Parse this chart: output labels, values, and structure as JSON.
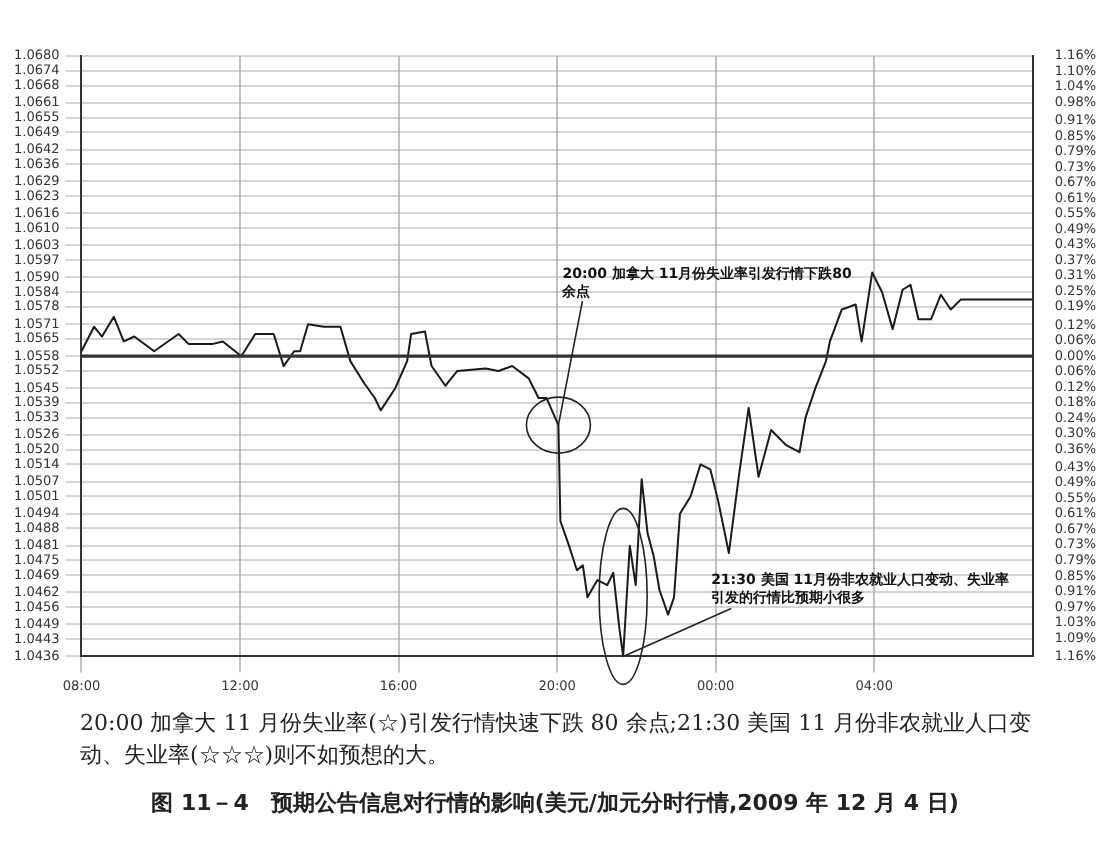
{
  "chart_data": {
    "type": "line",
    "title": "图 11－4　预期公告信息对行情的影响(美元/加元分时行情,2009 年 12 月 4 日)",
    "annotations": [
      "20:00 加拿大 11 月份失业率(☆)引发行情快速下跌 80 余点;21:30 美国 11 月份非农就业人口变动、失业率(☆☆☆)则不如预想的大。",
      {
        "text": "20:00 加拿大 11月份失业率引发行情下跌80余点",
        "x": "2009-12-04T20:02",
        "y": 1.053
      },
      {
        "text": "21:30 美国 11月份非农就业人口变动、失业率引发的行情比预期小很多",
        "x": "2009-12-04T21:40",
        "y": 1.0436
      }
    ],
    "series": [
      {
        "color": "#1a1a1a",
        "x": [
          "2009-12-04T08:00",
          "2009-12-04T08:19",
          "2009-12-04T08:31",
          "2009-12-04T08:49",
          "2009-12-04T09:04",
          "2009-12-04T09:20",
          "2009-12-04T09:50",
          "2009-12-04T10:27",
          "2009-12-04T10:42",
          "2009-12-04T11:19",
          "2009-12-04T11:34",
          "2009-12-04T12:02",
          "2009-12-04T12:23",
          "2009-12-04T12:51",
          "2009-12-04T13:06",
          "2009-12-04T13:22",
          "2009-12-04T13:31",
          "2009-12-04T13:43",
          "2009-12-04T14:07",
          "2009-12-04T14:32",
          "2009-12-04T14:47",
          "2009-12-04T15:08",
          "2009-12-04T15:24",
          "2009-12-04T15:33",
          "2009-12-04T15:55",
          "2009-12-04T16:13",
          "2009-12-04T16:19",
          "2009-12-04T16:40",
          "2009-12-04T16:50",
          "2009-12-04T17:11",
          "2009-12-04T17:29",
          "2009-12-04T18:12",
          "2009-12-04T18:31",
          "2009-12-04T18:52",
          "2009-12-04T19:17",
          "2009-12-04T19:32",
          "2009-12-04T19:44",
          "2009-12-04T20:02",
          "2009-12-04T20:05",
          "2009-12-04T20:18",
          "2009-12-04T20:30",
          "2009-12-04T20:39",
          "2009-12-04T20:46",
          "2009-12-04T21:01",
          "2009-12-04T21:16",
          "2009-12-04T21:25",
          "2009-12-04T21:34",
          "2009-12-04T21:40",
          "2009-12-04T21:50",
          "2009-12-04T21:59",
          "2009-12-04T22:08",
          "2009-12-04T22:17",
          "2009-12-04T22:26",
          "2009-12-04T22:35",
          "2009-12-04T22:48",
          "2009-12-04T22:57",
          "2009-12-04T23:06",
          "2009-12-04T23:22",
          "2009-12-04T23:37",
          "2009-12-04T23:52",
          "2009-12-05T00:04",
          "2009-12-05T00:20",
          "2009-12-05T00:35",
          "2009-12-05T00:50",
          "2009-12-05T01:05",
          "2009-12-05T01:24",
          "2009-12-05T01:46",
          "2009-12-05T02:07",
          "2009-12-05T02:16",
          "2009-12-05T02:31",
          "2009-12-05T02:47",
          "2009-12-05T02:53",
          "2009-12-05T03:11",
          "2009-12-05T03:32",
          "2009-12-05T03:41",
          "2009-12-05T03:57",
          "2009-12-05T04:12",
          "2009-12-05T04:28",
          "2009-12-05T04:43",
          "2009-12-05T04:55",
          "2009-12-05T05:07",
          "2009-12-05T05:26",
          "2009-12-05T05:41",
          "2009-12-05T05:56",
          "2009-12-05T06:11",
          "2009-12-05T06:27",
          "2009-12-05T08:00"
        ],
        "values": [
          1.056,
          1.057,
          1.0566,
          1.0574,
          1.0564,
          1.0566,
          1.056,
          1.0567,
          1.0563,
          1.0563,
          1.0564,
          1.0558,
          1.0567,
          1.0567,
          1.0554,
          1.056,
          1.056,
          1.0571,
          1.057,
          1.057,
          1.0556,
          1.0547,
          1.0541,
          1.0536,
          1.0545,
          1.0556,
          1.0567,
          1.0568,
          1.0554,
          1.0546,
          1.0552,
          1.0553,
          1.0552,
          1.0554,
          1.0549,
          1.0541,
          1.0541,
          1.053,
          1.0491,
          1.0481,
          1.0471,
          1.0473,
          1.046,
          1.0467,
          1.0465,
          1.047,
          1.0448,
          1.0436,
          1.0481,
          1.0465,
          1.0508,
          1.0486,
          1.0477,
          1.0463,
          1.0453,
          1.046,
          1.0494,
          1.0501,
          1.0514,
          1.0512,
          1.0499,
          1.0478,
          1.0509,
          1.0537,
          1.0509,
          1.0528,
          1.0522,
          1.0519,
          1.0533,
          1.0545,
          1.0556,
          1.0564,
          1.0577,
          1.0579,
          1.0564,
          1.0592,
          1.0584,
          1.0569,
          1.0585,
          1.0587,
          1.0573,
          1.0573,
          1.0583,
          1.0577,
          1.0581,
          1.0581,
          1.0581
        ]
      }
    ],
    "xlim": [
      "2009-12-04T08:00",
      "2009-12-05T08:00"
    ],
    "xticks": [
      {
        "value": "2009-12-04T08:00",
        "label": "08:00"
      },
      {
        "value": "2009-12-04T12:00",
        "label": "12:00"
      },
      {
        "value": "2009-12-04T16:00",
        "label": "16:00"
      },
      {
        "value": "2009-12-04T20:00",
        "label": "20:00"
      },
      {
        "value": "2009-12-05T00:00",
        "label": "00:00"
      },
      {
        "value": "2009-12-05T04:00",
        "label": "04:00"
      }
    ],
    "ylim": [
      1.0436,
      1.068
    ],
    "yticks": [
      {
        "value": 1.068,
        "label": "1.0680"
      },
      1.0674,
      1.0668,
      1.0661,
      1.0655,
      1.0649,
      1.0642,
      1.0636,
      1.0629,
      1.0623,
      1.0616,
      {
        "value": 1.061,
        "label": "1.0610"
      },
      1.0603,
      1.0597,
      {
        "value": 1.059,
        "label": "1.0590"
      },
      1.0584,
      1.0578,
      1.0571,
      1.0565,
      1.0558,
      1.0552,
      1.0545,
      1.0539,
      1.0533,
      1.0526,
      {
        "value": 1.052,
        "label": "1.0520"
      },
      1.0514,
      1.0507,
      1.0501,
      1.0494,
      1.0488,
      1.0481,
      1.0475,
      1.0469,
      1.0462,
      1.0456,
      1.0449,
      1.0443,
      1.0436
    ],
    "y2lim": [
      -1.16,
      1.16
    ],
    "y2ticks": [
      {
        "value": 1.16,
        "label": "1.16%"
      },
      {
        "value": 1.1,
        "label": "1.10%"
      },
      {
        "value": 1.04,
        "label": "1.04%"
      },
      {
        "value": 0.98,
        "label": "0.98%"
      },
      {
        "value": 0.91,
        "label": "0.91%"
      },
      {
        "value": 0.85,
        "label": "0.85%"
      },
      {
        "value": 0.79,
        "label": "0.79%"
      },
      {
        "value": 0.73,
        "label": "0.73%"
      },
      {
        "value": 0.67,
        "label": "0.67%"
      },
      {
        "value": 0.61,
        "label": "0.61%"
      },
      {
        "value": 0.55,
        "label": "0.55%"
      },
      {
        "value": 0.49,
        "label": "0.49%"
      },
      {
        "value": 0.43,
        "label": "0.43%"
      },
      {
        "value": 0.37,
        "label": "0.37%"
      },
      {
        "value": 0.31,
        "label": "0.31%"
      },
      {
        "value": 0.25,
        "label": "0.25%"
      },
      {
        "value": 0.19,
        "label": "0.19%"
      },
      {
        "value": 0.12,
        "label": "0.12%"
      },
      {
        "value": 0.06,
        "label": "0.06%"
      },
      {
        "value": 0,
        "label": "0.00%"
      },
      {
        "value": -0.06,
        "label": "0.06%"
      },
      {
        "value": -0.12,
        "label": "0.12%"
      },
      {
        "value": -0.18,
        "label": "0.18%"
      },
      {
        "value": -0.24,
        "label": "0.24%"
      },
      {
        "value": -0.3,
        "label": "0.30%"
      },
      {
        "value": -0.36,
        "label": "0.36%"
      },
      {
        "value": -0.43,
        "label": "0.43%"
      },
      {
        "value": -0.49,
        "label": "0.49%"
      },
      {
        "value": -0.55,
        "label": "0.55%"
      },
      {
        "value": -0.61,
        "label": "0.61%"
      },
      {
        "value": -0.67,
        "label": "0.67%"
      },
      {
        "value": -0.73,
        "label": "0.73%"
      },
      {
        "value": -0.79,
        "label": "0.79%"
      },
      {
        "value": -0.85,
        "label": "0.85%"
      },
      {
        "value": -0.91,
        "label": "0.91%"
      },
      {
        "value": -0.97,
        "label": "0.97%"
      },
      {
        "value": -1.03,
        "label": "1.03%"
      },
      {
        "value": -1.09,
        "label": "1.09%"
      },
      {
        "value": -1.16,
        "label": "1.16%"
      }
    ],
    "ref_lines": [
      {
        "axis": "y2",
        "value": 0,
        "color": "#333333"
      }
    ],
    "grid": true,
    "marker": "none",
    "line_style": "solid",
    "legend": false
  }
}
